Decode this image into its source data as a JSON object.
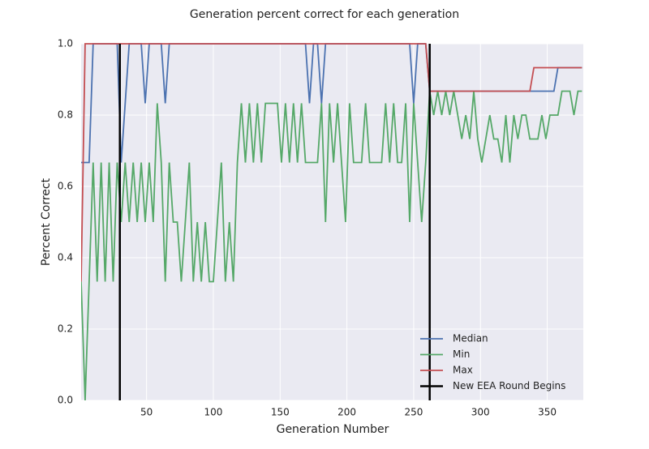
{
  "chart_data": {
    "type": "line",
    "title": "Generation percent correct for each generation",
    "x_label": "Generation Number",
    "y_label": "Percent Correct",
    "x": [
      1,
      4,
      7,
      10,
      13,
      16,
      19,
      22,
      25,
      28,
      31,
      34,
      37,
      40,
      43,
      46,
      49,
      52,
      55,
      58,
      61,
      64,
      67,
      70,
      73,
      76,
      79,
      82,
      85,
      88,
      91,
      94,
      97,
      100,
      103,
      106,
      109,
      112,
      115,
      118,
      121,
      124,
      127,
      130,
      133,
      136,
      139,
      142,
      145,
      148,
      151,
      154,
      157,
      160,
      163,
      166,
      169,
      172,
      175,
      178,
      181,
      184,
      187,
      190,
      193,
      196,
      199,
      202,
      205,
      208,
      211,
      214,
      217,
      220,
      223,
      226,
      229,
      232,
      235,
      238,
      241,
      244,
      247,
      250,
      253,
      256,
      259,
      262,
      265,
      268,
      271,
      274,
      277,
      280,
      283,
      286,
      289,
      292,
      295,
      298,
      301,
      304,
      307,
      310,
      313,
      316,
      319,
      322,
      325,
      328,
      331,
      334,
      337,
      340,
      343,
      346,
      349,
      352,
      355,
      358,
      361,
      364,
      367,
      370,
      373,
      376
    ],
    "series": [
      {
        "name": "Median",
        "color": "#4c72b0",
        "values": [
          0.667,
          0.667,
          0.667,
          1,
          1,
          1,
          1,
          1,
          1,
          1,
          0.667,
          0.833,
          1,
          1,
          1,
          1,
          0.833,
          1,
          1,
          1,
          1,
          0.833,
          1,
          1,
          1,
          1,
          1,
          1,
          1,
          1,
          1,
          1,
          1,
          1,
          1,
          1,
          1,
          1,
          1,
          1,
          1,
          1,
          1,
          1,
          1,
          1,
          1,
          1,
          1,
          1,
          1,
          1,
          1,
          1,
          1,
          1,
          1,
          0.833,
          1,
          1,
          0.833,
          1,
          1,
          1,
          1,
          1,
          1,
          1,
          1,
          1,
          1,
          1,
          1,
          1,
          1,
          1,
          1,
          1,
          1,
          1,
          1,
          1,
          1,
          0.833,
          1,
          1,
          1,
          0.867,
          0.867,
          0.867,
          0.867,
          0.867,
          0.867,
          0.867,
          0.867,
          0.867,
          0.867,
          0.867,
          0.867,
          0.867,
          0.867,
          0.867,
          0.867,
          0.867,
          0.867,
          0.867,
          0.867,
          0.867,
          0.867,
          0.867,
          0.867,
          0.867,
          0.867,
          0.867,
          0.867,
          0.867,
          0.867,
          0.867,
          0.867,
          0.933,
          0.933,
          0.933,
          0.933,
          0.933,
          0.933,
          0.933
        ]
      },
      {
        "name": "Min",
        "color": "#55a868",
        "values": [
          0.333,
          0,
          0.333,
          0.667,
          0.333,
          0.667,
          0.333,
          0.667,
          0.333,
          0.667,
          0.5,
          0.667,
          0.5,
          0.667,
          0.5,
          0.667,
          0.5,
          0.667,
          0.5,
          0.833,
          0.667,
          0.333,
          0.667,
          0.5,
          0.5,
          0.333,
          0.5,
          0.667,
          0.333,
          0.5,
          0.333,
          0.5,
          0.333,
          0.333,
          0.5,
          0.667,
          0.333,
          0.5,
          0.333,
          0.667,
          0.833,
          0.667,
          0.833,
          0.667,
          0.833,
          0.667,
          0.833,
          0.833,
          0.833,
          0.833,
          0.667,
          0.833,
          0.667,
          0.833,
          0.667,
          0.833,
          0.667,
          0.667,
          0.667,
          0.667,
          0.833,
          0.5,
          0.833,
          0.667,
          0.833,
          0.667,
          0.5,
          0.833,
          0.667,
          0.667,
          0.667,
          0.833,
          0.667,
          0.667,
          0.667,
          0.667,
          0.833,
          0.667,
          0.833,
          0.667,
          0.667,
          0.833,
          0.5,
          0.833,
          0.667,
          0.5,
          0.667,
          0.867,
          0.8,
          0.867,
          0.8,
          0.867,
          0.8,
          0.867,
          0.8,
          0.733,
          0.8,
          0.733,
          0.867,
          0.733,
          0.667,
          0.733,
          0.8,
          0.733,
          0.733,
          0.667,
          0.8,
          0.667,
          0.8,
          0.733,
          0.8,
          0.8,
          0.733,
          0.733,
          0.733,
          0.8,
          0.733,
          0.8,
          0.8,
          0.8,
          0.867,
          0.867,
          0.867,
          0.8,
          0.867,
          0.867
        ]
      },
      {
        "name": "Max",
        "color": "#c44e52",
        "values": [
          0.333,
          1,
          1,
          1,
          1,
          1,
          1,
          1,
          1,
          1,
          1,
          1,
          1,
          1,
          1,
          1,
          1,
          1,
          1,
          1,
          1,
          1,
          1,
          1,
          1,
          1,
          1,
          1,
          1,
          1,
          1,
          1,
          1,
          1,
          1,
          1,
          1,
          1,
          1,
          1,
          1,
          1,
          1,
          1,
          1,
          1,
          1,
          1,
          1,
          1,
          1,
          1,
          1,
          1,
          1,
          1,
          1,
          1,
          1,
          1,
          1,
          1,
          1,
          1,
          1,
          1,
          1,
          1,
          1,
          1,
          1,
          1,
          1,
          1,
          1,
          1,
          1,
          1,
          1,
          1,
          1,
          1,
          1,
          1,
          1,
          1,
          1,
          0.867,
          0.867,
          0.867,
          0.867,
          0.867,
          0.867,
          0.867,
          0.867,
          0.867,
          0.867,
          0.867,
          0.867,
          0.867,
          0.867,
          0.867,
          0.867,
          0.867,
          0.867,
          0.867,
          0.867,
          0.867,
          0.867,
          0.867,
          0.867,
          0.867,
          0.867,
          0.933,
          0.933,
          0.933,
          0.933,
          0.933,
          0.933,
          0.933,
          0.933,
          0.933,
          0.933,
          0.933,
          0.933,
          0.933
        ]
      }
    ],
    "vlines": {
      "name": "New EEA Round Begins",
      "color": "#000000",
      "x": [
        30,
        262
      ]
    },
    "xlim": [
      1,
      377
    ],
    "ylim": [
      0,
      1
    ],
    "xticks": [
      50,
      100,
      150,
      200,
      250,
      300,
      350
    ],
    "yticks": [
      {
        "value": 0,
        "label": "0.0"
      },
      0.2,
      0.4,
      0.6,
      0.8,
      {
        "value": 1,
        "label": "1.0"
      }
    ],
    "grid": true,
    "legend": "lower right"
  }
}
